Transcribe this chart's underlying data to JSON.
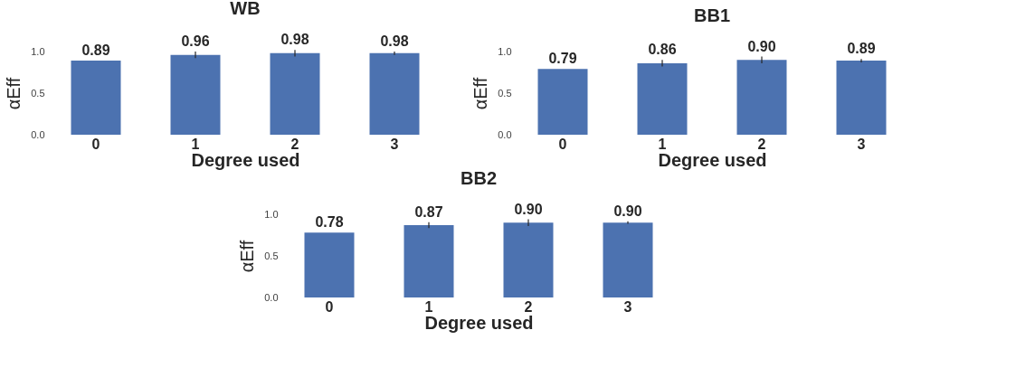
{
  "chart_data": [
    {
      "type": "bar",
      "title": "WB",
      "xlabel": "Degree used",
      "ylabel": "αEff",
      "categories": [
        "0",
        "1",
        "2",
        "3"
      ],
      "values": [
        0.89,
        0.96,
        0.98,
        0.98
      ],
      "errors": [
        null,
        0.04,
        0.04,
        0.02
      ],
      "value_labels": [
        "0.89",
        "0.96",
        "0.98",
        "0.98"
      ],
      "color": "#4c72b0",
      "ylim": [
        0,
        1.0
      ],
      "yticks": [
        {
          "value": 0,
          "label": "0.0"
        },
        {
          "value": 0.5,
          "label": "0.5"
        },
        {
          "value": 1,
          "label": "1.0"
        }
      ]
    },
    {
      "type": "bar",
      "title": "BB1",
      "xlabel": "Degree used",
      "ylabel": "αEff",
      "categories": [
        "0",
        "1",
        "2",
        "3"
      ],
      "values": [
        0.79,
        0.86,
        0.9,
        0.89
      ],
      "errors": [
        null,
        0.04,
        0.04,
        0.02
      ],
      "value_labels": [
        "0.79",
        "0.86",
        "0.90",
        "0.89"
      ],
      "color": "#4c72b0",
      "ylim": [
        0,
        1.0
      ],
      "yticks": [
        {
          "value": 0,
          "label": "0.0"
        },
        {
          "value": 0.5,
          "label": "0.5"
        },
        {
          "value": 1,
          "label": "1.0"
        }
      ]
    },
    {
      "type": "bar",
      "title": "BB2",
      "xlabel": "Degree used",
      "ylabel": "αEff",
      "categories": [
        "0",
        "1",
        "2",
        "3"
      ],
      "values": [
        0.78,
        0.87,
        0.9,
        0.9
      ],
      "errors": [
        null,
        0.035,
        0.04,
        0.015
      ],
      "value_labels": [
        "0.78",
        "0.87",
        "0.90",
        "0.90"
      ],
      "color": "#4c72b0",
      "ylim": [
        0,
        1.0
      ],
      "yticks": [
        {
          "value": 0,
          "label": "0.0"
        },
        {
          "value": 0.5,
          "label": "0.5"
        },
        {
          "value": 1,
          "label": "1.0"
        }
      ]
    }
  ]
}
